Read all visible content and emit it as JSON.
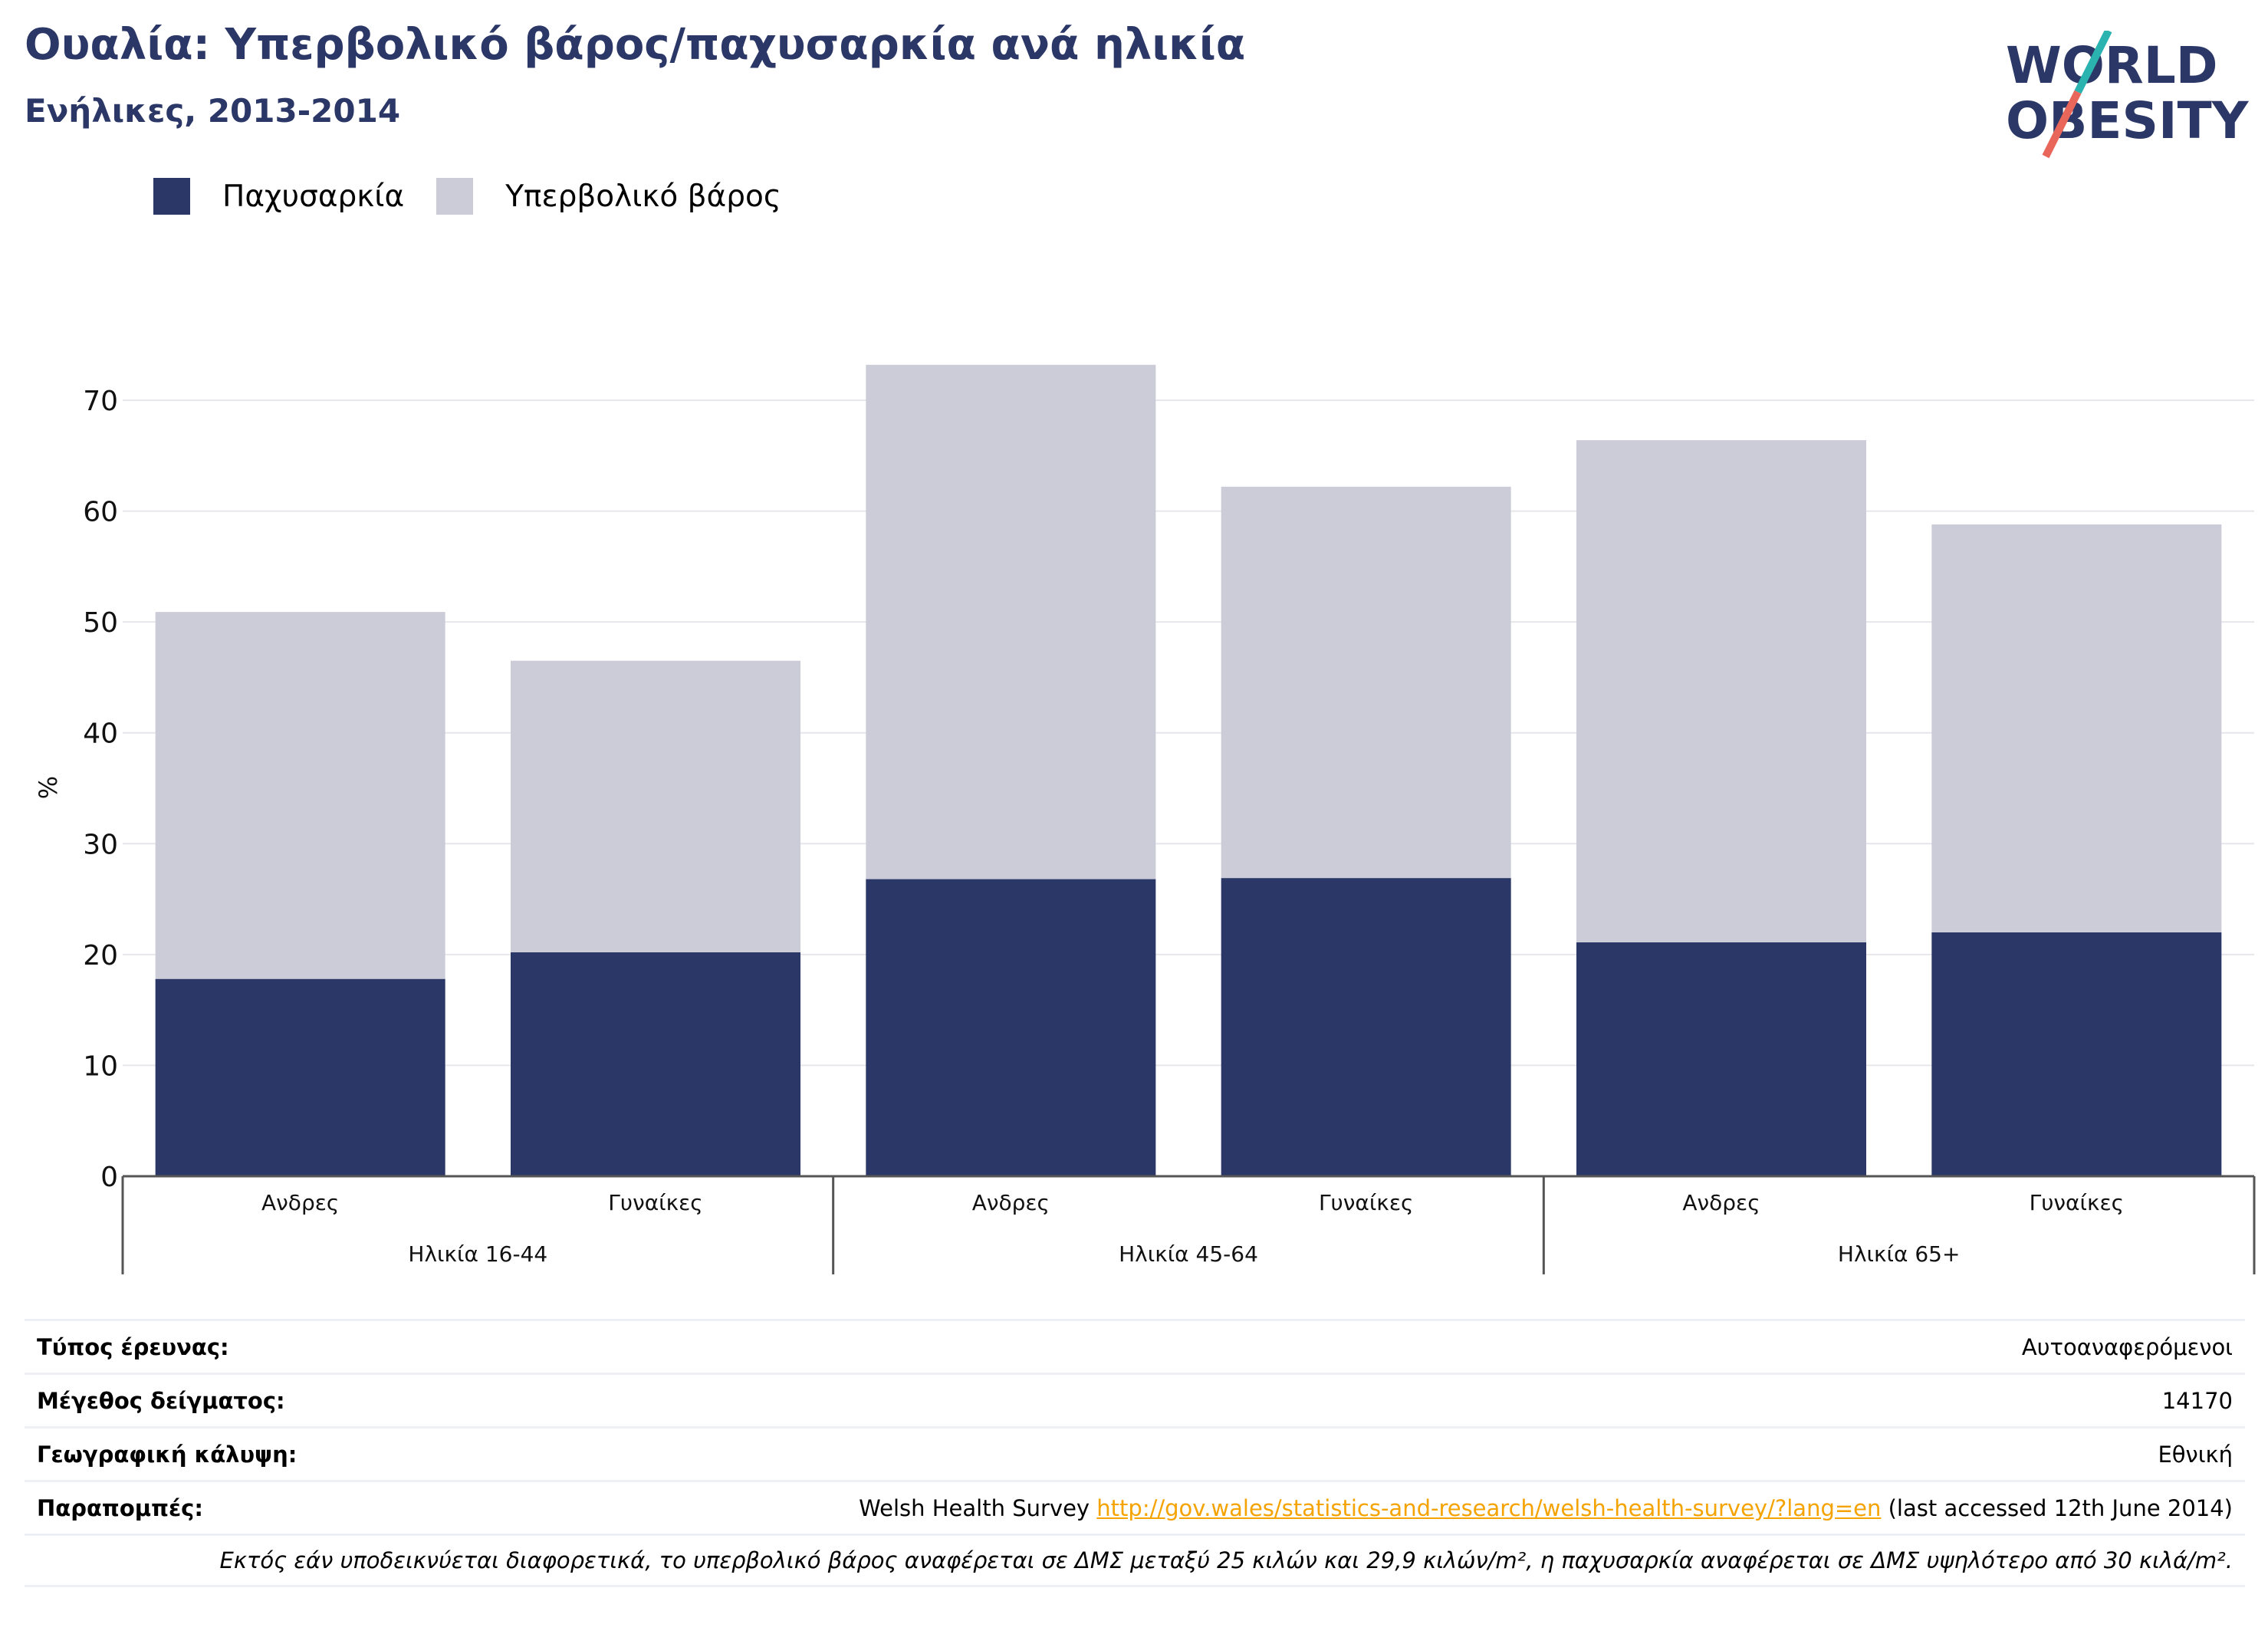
{
  "header": {
    "title": "Ουαλία: Υπερβολικό βάρος/παχυσαρκία ανά ηλικία",
    "subtitle": "Ενήλικες, 2013-2014"
  },
  "logo": {
    "line1": "WORLD",
    "line2": "OBESITY",
    "colors": {
      "text": "#2b3766",
      "slash_top": "#2bb3b0",
      "slash_bottom": "#e8675a"
    }
  },
  "colors": {
    "obesity": "#2b3766",
    "overweight": "#cbccd8",
    "grid": "#e6e6ec",
    "axis": "#555555",
    "link": "#f5a300"
  },
  "chart_data": {
    "type": "bar",
    "stacked": true,
    "ylabel": "%",
    "ylim": [
      0,
      75
    ],
    "yticks": [
      0,
      10,
      20,
      30,
      40,
      50,
      60,
      70
    ],
    "grid": true,
    "legend_position": "top-left",
    "categories": [
      "Ανδρες",
      "Γυναίκες",
      "Ανδρες",
      "Γυναίκες",
      "Ανδρες",
      "Γυναίκες"
    ],
    "groups": [
      {
        "label": "Ηλικία 16-44",
        "span": 2
      },
      {
        "label": "Ηλικία 45-64",
        "span": 2
      },
      {
        "label": "Ηλικία 65+",
        "span": 2
      }
    ],
    "series": [
      {
        "name": "Παχυσαρκία",
        "values": [
          17.8,
          20.2,
          26.8,
          26.9,
          21.1,
          22.0
        ]
      },
      {
        "name": "Υπερβολικό βάρος",
        "values": [
          33.1,
          26.3,
          46.4,
          35.3,
          45.3,
          36.8
        ]
      }
    ]
  },
  "meta": {
    "survey_type_label": "Τύπος έρευνας:",
    "survey_type_value": "Αυτοαναφερόμενοι",
    "sample_size_label": "Μέγεθος δείγματος:",
    "sample_size_value": "14170",
    "coverage_label": "Γεωγραφική κάλυψη:",
    "coverage_value": "Εθνική",
    "references_label": "Παραπομπές:",
    "references_prefix": "Welsh Health Survey ",
    "references_link": "http://gov.wales/statistics-and-research/welsh-health-survey/?lang=en",
    "references_suffix": " (last accessed 12th June 2014)",
    "note": "Εκτός εάν υποδεικνύεται διαφορετικά, το υπερβολικό βάρος αναφέρεται σε ΔΜΣ μεταξύ 25 κιλών και 29,9 κιλών/m², η παχυσαρκία αναφέρεται σε ΔΜΣ υψηλότερο από 30 κιλά/m²."
  }
}
